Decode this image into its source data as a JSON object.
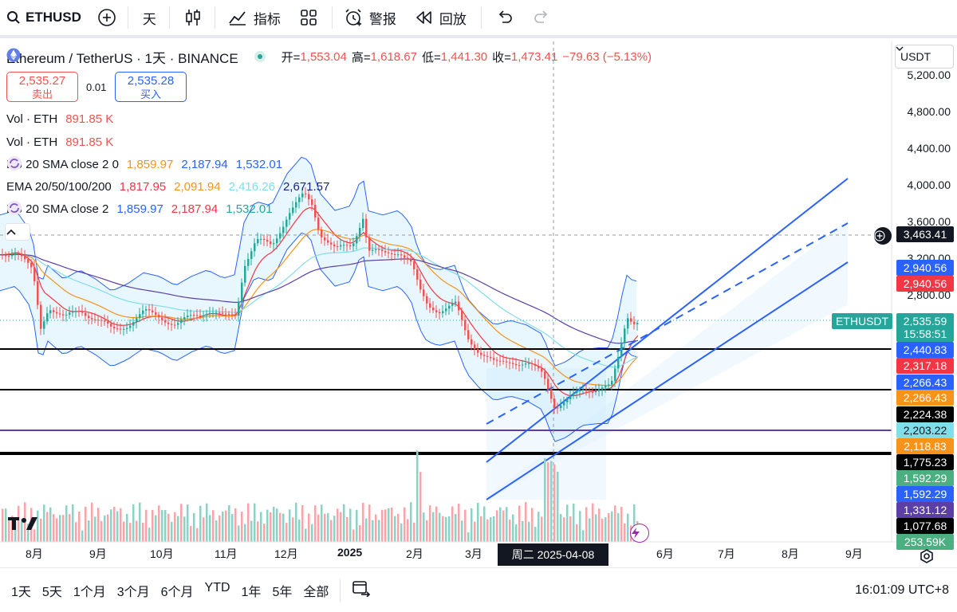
{
  "toolbar": {
    "symbol": "ETHUSD",
    "interval": "天",
    "indicators": "指标",
    "alerts": "警报",
    "replay": "回放"
  },
  "legend": {
    "title": "Ethereum / TetherUS · 1天 · BINANCE",
    "o_label": "开=",
    "o": "1,553.04",
    "h_label": "高=",
    "h": "1,618.67",
    "l_label": "低=",
    "l": "1,441.30",
    "c_label": "收=",
    "c": "1,473.41",
    "change": "−79.63 (−5.13%)",
    "sell_price": "2,535.27",
    "sell_label": "卖出",
    "spread": "0.01",
    "buy_price": "2,535.28",
    "buy_label": "买入",
    "vol1_name": "Vol · ETH",
    "vol1_val": "891.85 K",
    "vol2_name": "Vol · ETH",
    "vol2_val": "891.85 K",
    "bb1_name": "BB 20 SMA close 2 0",
    "bb1_v1": "1,859.97",
    "bb1_v2": "2,187.94",
    "bb1_v3": "1,532.01",
    "ema_name": "EMA 20/50/100/200",
    "ema_v1": "1,817.95",
    "ema_v2": "2,091.94",
    "ema_v3": "2,416.26",
    "ema_v4": "2,671.57",
    "bb2_name": "BB 20 SMA close 2",
    "bb2_v1": "1,859.97",
    "bb2_v2": "2,187.94",
    "bb2_v3": "1,532.01"
  },
  "currency": "USDT",
  "y_ticks": [
    "5,200.00",
    "4,800.00",
    "4,400.00",
    "4,000.00",
    "3,600.00",
    "3,200.00",
    "2,800.00"
  ],
  "price_labels": [
    {
      "text": "3,463.41",
      "bg": "#131722",
      "fg": "#ffffff"
    },
    {
      "text": "2,940.56",
      "bg": "#2962ff",
      "fg": "#ffffff"
    },
    {
      "text": "2,940.56",
      "bg": "#f23645",
      "fg": "#ffffff"
    },
    {
      "text": "2,535.59",
      "bg": "#26a69a",
      "fg": "#ffffff"
    },
    {
      "text": "15:58:51",
      "bg": "#26a69a",
      "fg": "#ffffff"
    },
    {
      "text": "2,440.83",
      "bg": "#2962ff",
      "fg": "#ffffff"
    },
    {
      "text": "2,317.18",
      "bg": "#f23645",
      "fg": "#ffffff"
    },
    {
      "text": "2,266.43",
      "bg": "#2962ff",
      "fg": "#ffffff"
    },
    {
      "text": "2,266.43",
      "bg": "#f7931a",
      "fg": "#ffffff"
    },
    {
      "text": "2,224.38",
      "bg": "#000000",
      "fg": "#ffffff"
    },
    {
      "text": "2,203.22",
      "bg": "#80deea",
      "fg": "#131722"
    },
    {
      "text": "2,118.83",
      "bg": "#f7931a",
      "fg": "#ffffff"
    },
    {
      "text": "1,775.23",
      "bg": "#000000",
      "fg": "#ffffff"
    },
    {
      "text": "1,592.29",
      "bg": "#4caf82",
      "fg": "#ffffff"
    },
    {
      "text": "1,592.29",
      "bg": "#2962ff",
      "fg": "#ffffff"
    },
    {
      "text": "1,331.12",
      "bg": "#5c3fa6",
      "fg": "#ffffff"
    },
    {
      "text": "1,077.68",
      "bg": "#000000",
      "fg": "#ffffff"
    },
    {
      "text": "253.59K",
      "bg": "#4caf82",
      "fg": "#ffffff"
    }
  ],
  "symbol_tag": "ETHUSDT",
  "x_ticks": [
    "8月",
    "9月",
    "10月",
    "11月",
    "12月",
    "2025",
    "2月",
    "3月",
    "6月",
    "7月",
    "8月",
    "9月"
  ],
  "crosshair_date": "周二  2025-04-08",
  "ranges": [
    "1天",
    "5天",
    "1个月",
    "3个月",
    "6个月",
    "YTD",
    "1年",
    "5年",
    "全部"
  ],
  "clock": "16:01:09 UTC+8",
  "colors": {
    "up": "#26a69a",
    "down": "#ef5350",
    "channel": "#2962ff"
  }
}
